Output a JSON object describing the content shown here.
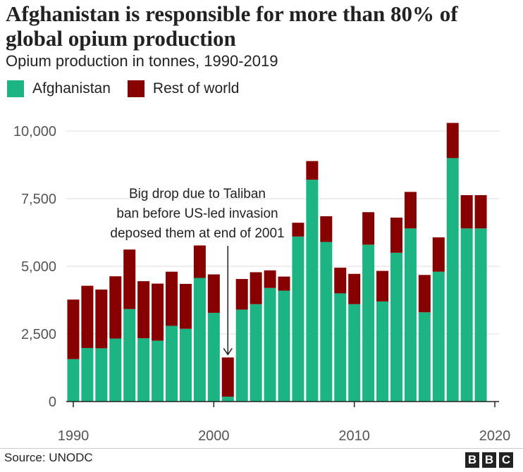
{
  "title": "Afghanistan is responsible for more than 80% of global opium production",
  "subtitle": "Opium production in tonnes, 1990-2019",
  "colors": {
    "afghanistan": "#1bb482",
    "rest_of_world": "#870000"
  },
  "source": "Source: UNODC",
  "logo": {
    "letters": [
      "B",
      "B",
      "C"
    ]
  },
  "annotation": {
    "lines": [
      "Big drop due to Taliban",
      "ban before US-led invasion",
      "deposed them at end of 2001"
    ],
    "target_year": 2001
  },
  "chart_data": {
    "type": "bar",
    "stacked": true,
    "title": "Afghanistan is responsible for more than 80% of global opium production",
    "subtitle": "Opium production in tonnes, 1990-2019",
    "xlabel": "",
    "ylabel": "",
    "ylim": [
      0,
      10500
    ],
    "xlim": [
      1989.5,
      2020.3
    ],
    "yticks": [
      0,
      2500,
      5000,
      7500,
      10000
    ],
    "ytick_labels": [
      "0",
      "2,500",
      "5,000",
      "7,500",
      "10,000"
    ],
    "xticks": [
      1990,
      2000,
      2010,
      2020
    ],
    "xtick_labels": [
      "1990",
      "2000",
      "2010",
      "2020"
    ],
    "legend_position": "top-left",
    "grid": true,
    "categories": [
      1990,
      1991,
      1992,
      1993,
      1994,
      1995,
      1996,
      1997,
      1998,
      1999,
      2000,
      2001,
      2002,
      2003,
      2004,
      2005,
      2006,
      2007,
      2008,
      2009,
      2010,
      2011,
      2012,
      2013,
      2014,
      2015,
      2016,
      2017,
      2018,
      2019
    ],
    "series": [
      {
        "name": "Afghanistan",
        "values": [
          1570,
          1980,
          1970,
          2330,
          3420,
          2340,
          2250,
          2800,
          2690,
          4570,
          3280,
          180,
          3400,
          3600,
          4200,
          4100,
          6100,
          8200,
          5900,
          4000,
          3600,
          5800,
          3700,
          5500,
          6400,
          3300,
          4800,
          9000,
          6400,
          6400
        ]
      },
      {
        "name": "Rest of world",
        "values": [
          2200,
          2300,
          2170,
          2300,
          2200,
          2110,
          2110,
          2000,
          1660,
          1200,
          1420,
          1450,
          1130,
          1180,
          650,
          520,
          510,
          690,
          950,
          950,
          1120,
          1200,
          1130,
          1300,
          1350,
          1380,
          1270,
          1300,
          1230,
          1230
        ]
      }
    ]
  }
}
